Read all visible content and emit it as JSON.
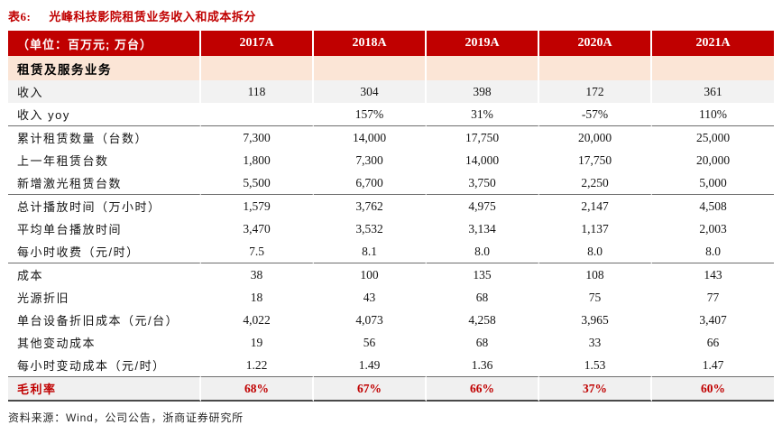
{
  "title": {
    "tag": "表6:",
    "text": "光峰科技影院租赁业务收入和成本拆分"
  },
  "colors": {
    "header_red": "#c00000",
    "section_peach": "#fbe5d6",
    "shaded_row_gray": "#f2f2f2",
    "highlight_row_gray": "#f0f0f0",
    "accent_red": "#c00000",
    "separator_gray": "#6e6e6e"
  },
  "table": {
    "unit_header": "（单位：百万元; 万台）",
    "year_columns": [
      "2017A",
      "2018A",
      "2019A",
      "2020A",
      "2021A"
    ],
    "section_header": "租赁及服务业务",
    "rows": [
      {
        "label": "收入",
        "values": [
          "118",
          "304",
          "398",
          "172",
          "361"
        ],
        "shaded": true
      },
      {
        "label": "收入 yoy",
        "values": [
          "",
          "157%",
          "31%",
          "-57%",
          "110%"
        ],
        "group_end": true
      },
      {
        "label": "累计租赁数量（台数）",
        "values": [
          "7,300",
          "14,000",
          "17,750",
          "20,000",
          "25,000"
        ]
      },
      {
        "label": "上一年租赁台数",
        "values": [
          "1,800",
          "7,300",
          "14,000",
          "17,750",
          "20,000"
        ]
      },
      {
        "label": "新增激光租赁台数",
        "values": [
          "5,500",
          "6,700",
          "3,750",
          "2,250",
          "5,000"
        ],
        "group_end": true
      },
      {
        "label": "总计播放时间（万小时）",
        "values": [
          "1,579",
          "3,762",
          "4,975",
          "2,147",
          "4,508"
        ]
      },
      {
        "label": "平均单台播放时间",
        "values": [
          "3,470",
          "3,532",
          "3,134",
          "1,137",
          "2,003"
        ]
      },
      {
        "label": "每小时收费（元/时）",
        "values": [
          "7.5",
          "8.1",
          "8.0",
          "8.0",
          "8.0"
        ],
        "group_end": true
      },
      {
        "label": "成本",
        "values": [
          "38",
          "100",
          "135",
          "108",
          "143"
        ]
      },
      {
        "label": "光源折旧",
        "values": [
          "18",
          "43",
          "68",
          "75",
          "77"
        ]
      },
      {
        "label": "单台设备折旧成本（元/台）",
        "values": [
          "4,022",
          "4,073",
          "4,258",
          "3,965",
          "3,407"
        ]
      },
      {
        "label": "其他变动成本",
        "values": [
          "19",
          "56",
          "68",
          "33",
          "66"
        ]
      },
      {
        "label": "每小时变动成本（元/时）",
        "values": [
          "1.22",
          "1.49",
          "1.36",
          "1.53",
          "1.47"
        ],
        "group_end": true
      },
      {
        "label": "毛利率",
        "values": [
          "68%",
          "67%",
          "66%",
          "37%",
          "60%"
        ],
        "highlight": true
      }
    ]
  },
  "footer": {
    "source": "资料来源：Wind，公司公告，浙商证券研究所"
  }
}
